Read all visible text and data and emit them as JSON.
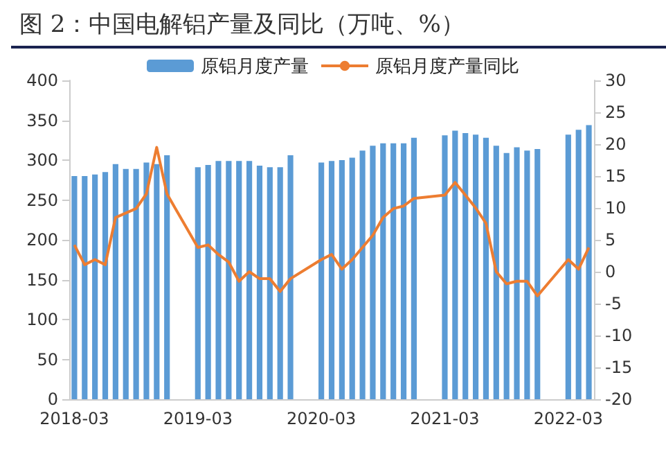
{
  "chart_data": {
    "type": "bar",
    "title": "图 2：中国电解铝产量及同比（万吨、%）",
    "categories": [
      "2018-03",
      null,
      null,
      null,
      null,
      null,
      null,
      null,
      null,
      null,
      null,
      null,
      "2019-03",
      null,
      null,
      null,
      null,
      null,
      null,
      null,
      null,
      null,
      null,
      null,
      "2020-03",
      null,
      null,
      null,
      null,
      null,
      null,
      null,
      null,
      null,
      null,
      null,
      "2021-03",
      null,
      null,
      null,
      null,
      null,
      null,
      null,
      null,
      null,
      null,
      null,
      "2022-03",
      null,
      null
    ],
    "series": [
      {
        "name": "原铝月度产量",
        "color": "#5b9bd5",
        "values": [
          280,
          280,
          282,
          285,
          295,
          289,
          289,
          297,
          295,
          306,
          null,
          null,
          291,
          294,
          299,
          299,
          299,
          299,
          293,
          291,
          291,
          306,
          null,
          null,
          297,
          299,
          300,
          303,
          312,
          318,
          321,
          321,
          321,
          328,
          null,
          null,
          331,
          337,
          334,
          332,
          328,
          318,
          309,
          316,
          312,
          314,
          null,
          null,
          332,
          338,
          344
        ]
      },
      {
        "name": "原铝月度产量同比",
        "type": "line",
        "axis": "y2",
        "color": "#ed7d31",
        "values": [
          4.2,
          1.1,
          1.9,
          1.1,
          8.5,
          9.2,
          9.9,
          12.2,
          19.5,
          12.2,
          null,
          null,
          3.8,
          4.2,
          2.7,
          1.5,
          -1.5,
          0,
          -1.1,
          -1.1,
          -3.1,
          -1.1,
          null,
          null,
          1.9,
          2.7,
          0.4,
          1.9,
          3.8,
          5.7,
          8.5,
          9.9,
          10.3,
          11.5,
          null,
          null,
          12,
          14,
          12,
          10,
          7.6,
          0,
          -1.9,
          -1.5,
          -1.5,
          -3.8,
          null,
          null,
          1.9,
          0.4,
          3.8
        ]
      }
    ],
    "ylim": [
      0,
      400
    ],
    "yticks": [
      0,
      50,
      100,
      150,
      200,
      250,
      300,
      350,
      400
    ],
    "y2lim": [
      -20,
      30
    ],
    "y2ticks": [
      -20,
      -15,
      -10,
      -5,
      0,
      5,
      10,
      15,
      20,
      25,
      30
    ],
    "legend": "top",
    "grid": false,
    "marker": "none",
    "line_style": "solid"
  }
}
